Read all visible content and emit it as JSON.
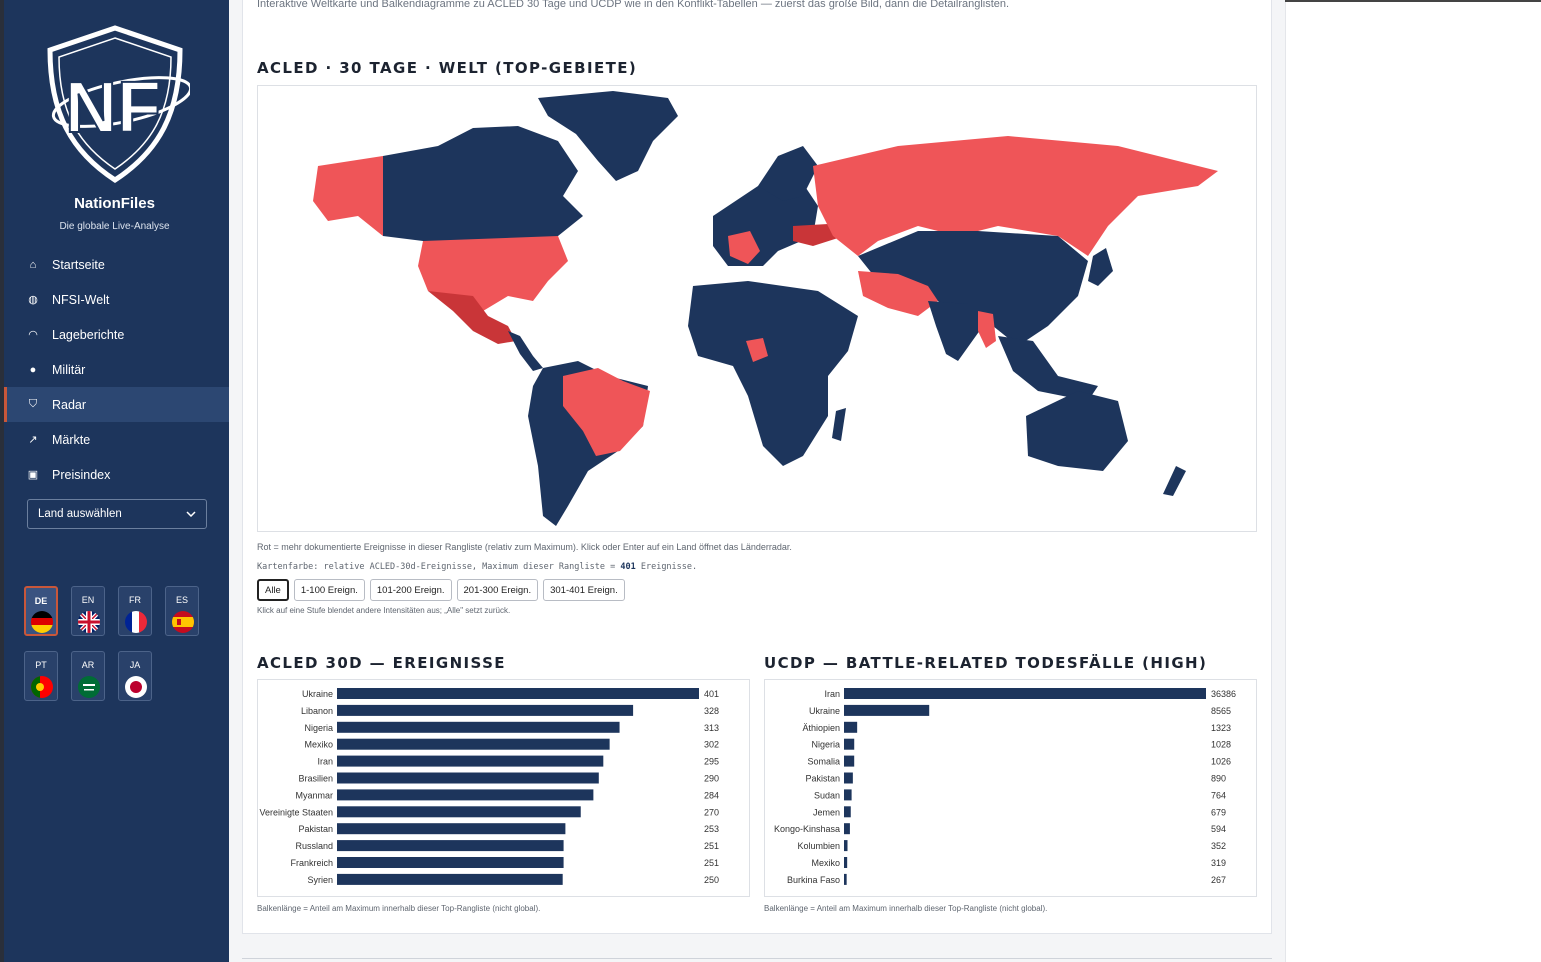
{
  "brand": {
    "name": "NationFiles",
    "tagline": "Die globale Live-Analyse",
    "logo_text": "NF"
  },
  "nav": [
    {
      "label": "Startseite",
      "icon": "home-icon"
    },
    {
      "label": "NFSI-Welt",
      "icon": "globe-icon"
    },
    {
      "label": "Lageberichte",
      "icon": "rss-icon"
    },
    {
      "label": "Militär",
      "icon": "earth-icon"
    },
    {
      "label": "Radar",
      "icon": "shield-icon",
      "active": true
    },
    {
      "label": "Märkte",
      "icon": "chart-icon"
    },
    {
      "label": "Preisindex",
      "icon": "basket-icon"
    }
  ],
  "country_select": {
    "label": "Land auswählen"
  },
  "languages": [
    {
      "code": "DE",
      "flag": "de-flag-icon",
      "active": true
    },
    {
      "code": "EN",
      "flag": "uk-flag-icon"
    },
    {
      "code": "FR",
      "flag": "fr-flag-icon"
    },
    {
      "code": "ES",
      "flag": "es-flag-icon"
    },
    {
      "code": "PT",
      "flag": "pt-flag-icon"
    },
    {
      "code": "AR",
      "flag": "sa-flag-icon"
    },
    {
      "code": "JA",
      "flag": "jp-flag-icon"
    }
  ],
  "intro": "Interaktive Weltkarte und Balkendiagramme zu ACLED 30 Tage und UCDP wie in den Konflikt-Tabellen — zuerst das große Bild, dann die Detailranglisten.",
  "map": {
    "title": "ACLED · 30 TAGE · WELT (TOP-GEBIETE)",
    "legend_text": "Rot = mehr dokumentierte Ereignisse in dieser Rangliste (relativ zum Maximum). Klick oder Enter auf ein Land öffnet das Länderradar.",
    "scale_prefix": "Kartenfarbe: relative ACLED-30d-Ereignisse, Maximum dieser Rangliste =",
    "scale_max": "401",
    "scale_suffix": "Ereignisse.",
    "filters": [
      "Alle",
      "1-100 Ereign.",
      "101-200 Ereign.",
      "201-300 Ereign.",
      "301-401 Ereign."
    ],
    "filter_hint": "Klick auf eine Stufe blendet andere Intensitäten aus; „Alle\" setzt zurück.",
    "colors": {
      "land": "#1d355c",
      "hot": "#ef5558",
      "hotter": "#c93538"
    }
  },
  "acled_note": "Balkenlänge = Anteil am Maximum innerhalb dieser Top-Rangliste (nicht global).",
  "ucdp_note": "Balkenlänge = Anteil am Maximum innerhalb dieser Top-Rangliste (nicht global).",
  "chart_data": [
    {
      "type": "bar",
      "orientation": "horizontal",
      "title": "ACLED 30D — EREIGNISSE",
      "categories": [
        "Ukraine",
        "Libanon",
        "Nigeria",
        "Mexiko",
        "Iran",
        "Brasilien",
        "Myanmar",
        "Vereinigte Staaten",
        "Pakistan",
        "Russland",
        "Frankreich",
        "Syrien"
      ],
      "values": [
        401,
        328,
        313,
        302,
        295,
        290,
        284,
        270,
        253,
        251,
        251,
        250
      ],
      "xlim": [
        0,
        401
      ],
      "color": "#1d355c"
    },
    {
      "type": "bar",
      "orientation": "horizontal",
      "title": "UCDP — BATTLE-RELATED TODESFÄLLE (HIGH)",
      "categories": [
        "Iran",
        "Ukraine",
        "Äthiopien",
        "Nigeria",
        "Somalia",
        "Pakistan",
        "Sudan",
        "Jemen",
        "Kongo-Kinshasa",
        "Kolumbien",
        "Mexiko",
        "Burkina Faso"
      ],
      "values": [
        36386,
        8565,
        1323,
        1028,
        1026,
        890,
        764,
        679,
        594,
        352,
        319,
        267
      ],
      "xlim": [
        0,
        36386
      ],
      "color": "#1d355c"
    }
  ]
}
